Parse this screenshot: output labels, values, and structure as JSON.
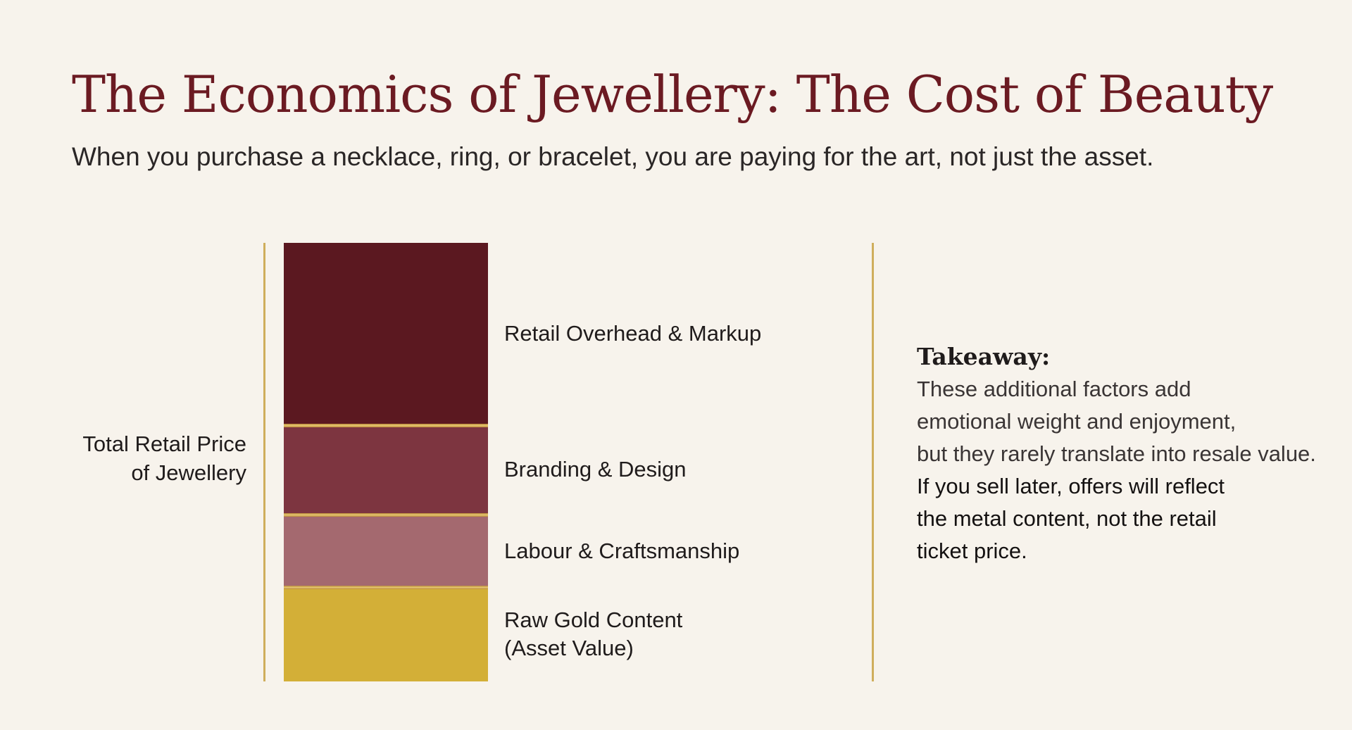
{
  "title": "The Economics of Jewellery: The Cost of Beauty",
  "subtitle": "When you purchase a necklace, ring, or bracelet, you are paying for the art, not just the asset.",
  "total_label": {
    "line1": "Total Retail Price",
    "line2": "of Jewellery"
  },
  "colors": {
    "background": "#f7f3ec",
    "title": "#6b1a22",
    "gold_rule": "#cfae5c"
  },
  "components": [
    {
      "label_lines": [
        "Retail Overhead & Markup"
      ],
      "share": 0.415,
      "color": "#5b1820"
    },
    {
      "label_lines": [
        "Branding & Design"
      ],
      "share": 0.205,
      "color": "#7d3540"
    },
    {
      "label_lines": [
        "Labour & Craftsmanship"
      ],
      "share": 0.165,
      "color": "#a4696f"
    },
    {
      "label_lines": [
        "Raw Gold Content",
        "(Asset Value)"
      ],
      "share": 0.215,
      "color": "#d3af37"
    }
  ],
  "takeaway": {
    "heading": "Takeaway:",
    "text": "These additional factors add\nemotional weight and enjoyment,\nbut they rarely translate into resale value.",
    "emphasis": "If you sell later, offers will reflect\nthe metal content, not the retail\nticket price."
  }
}
